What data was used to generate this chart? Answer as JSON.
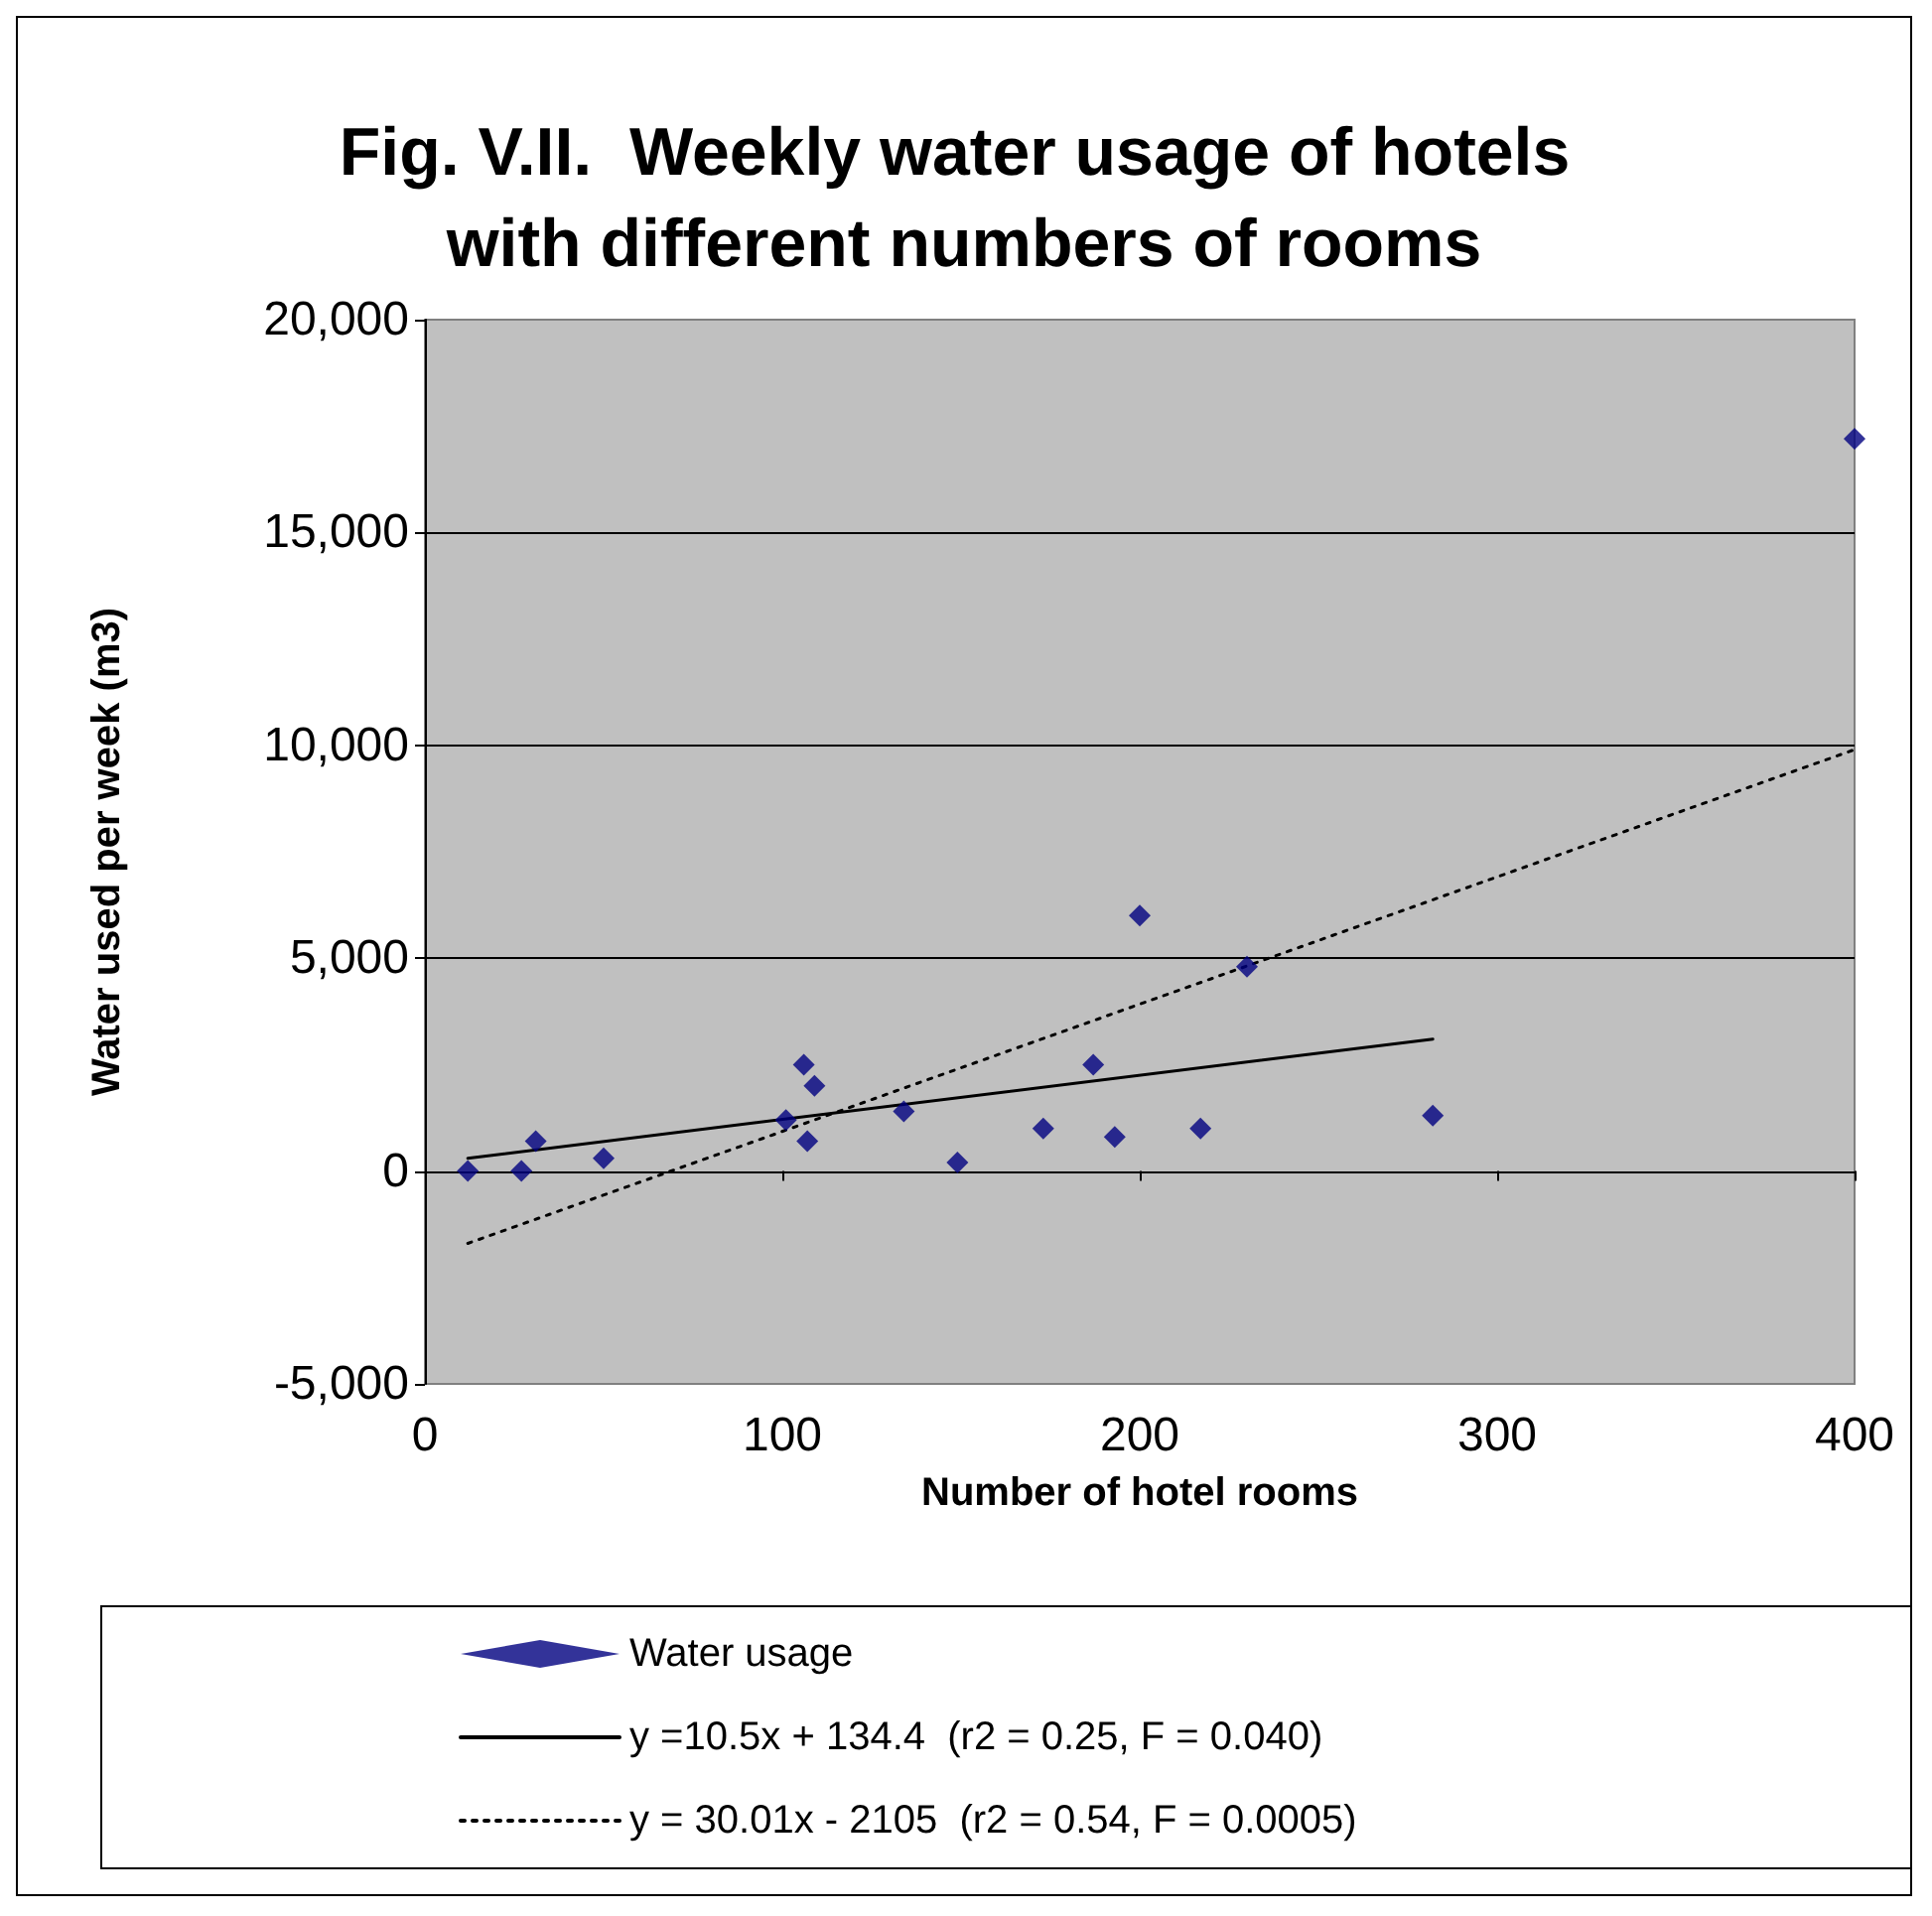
{
  "chart_data": {
    "type": "scatter",
    "title": "Fig. V.II.  Weekly water usage of hotels with different numbers of rooms",
    "xlabel": "Number of hotel rooms",
    "ylabel": "Water used per week (m3)",
    "xlim": [
      0,
      400
    ],
    "xticks": [
      0,
      100,
      200,
      300,
      400
    ],
    "ylim": [
      -5000,
      20000
    ],
    "yticks": [
      {
        "value": -5000,
        "label": "-5,000"
      },
      0,
      {
        "value": 5000,
        "label": "5,000"
      },
      {
        "value": 10000,
        "label": "10,000"
      },
      {
        "value": 15000,
        "label": "15,000"
      },
      {
        "value": 20000,
        "label": "20,000"
      }
    ],
    "grid": "y",
    "legend": "bottom",
    "series": [
      {
        "name": "Water usage",
        "marker": "diamond",
        "color": "#000080",
        "x": [
          12,
          27,
          31,
          50,
          101,
          106,
          107,
          109,
          134,
          149,
          173,
          187,
          193,
          200,
          217,
          230,
          282,
          400
        ],
        "values": [
          0,
          0,
          700,
          300,
          1200,
          2500,
          700,
          2000,
          1400,
          200,
          1000,
          2500,
          800,
          6000,
          1000,
          4800,
          1300,
          17200
        ]
      },
      {
        "name": "y =10.5x + 134.4  (r2 = 0.25, F = 0.040)",
        "type": "line",
        "color": "#000000",
        "line_style": "solid",
        "x": [
          12,
          282
        ],
        "values": [
          300,
          3100
        ]
      },
      {
        "name": "y = 30.01x - 2105  (r2 = 0.54, F = 0.0005)",
        "type": "line",
        "color": "#000000",
        "line_style": "dotted",
        "x": [
          12,
          400
        ],
        "values": [
          -1700,
          9900
        ]
      }
    ]
  }
}
